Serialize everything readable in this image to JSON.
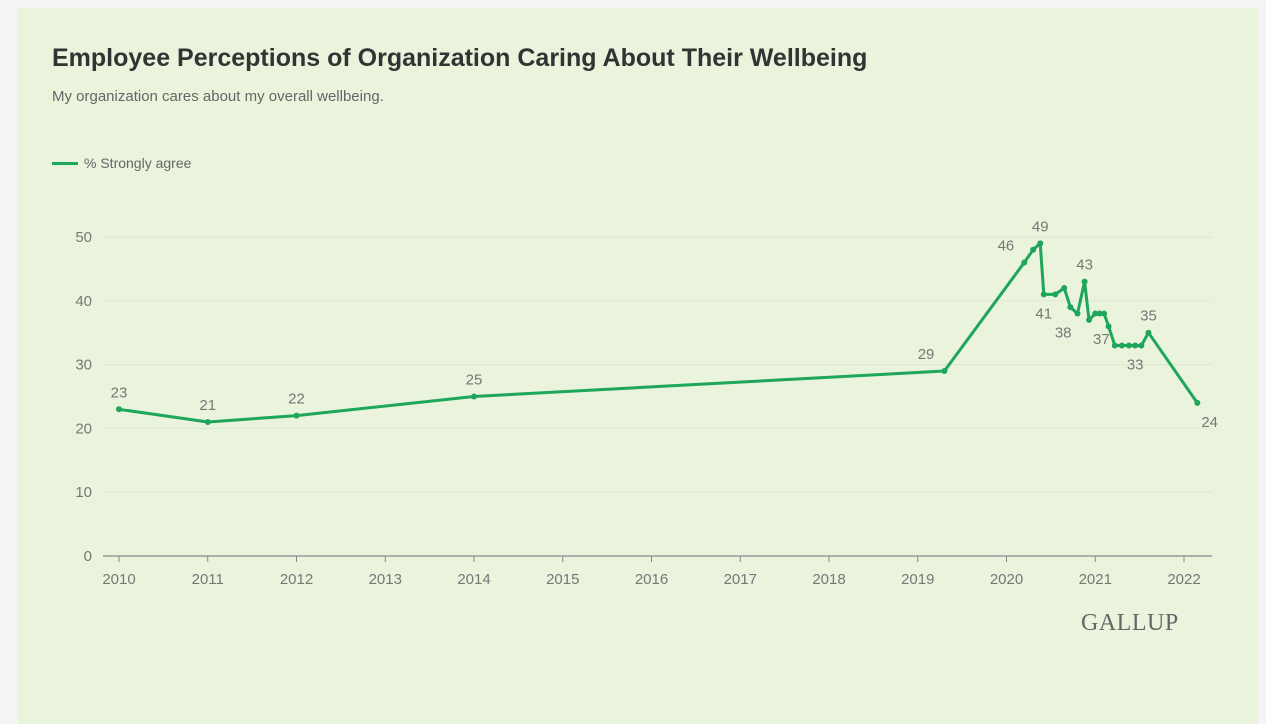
{
  "title": "Employee Perceptions of Organization Caring About Their Wellbeing",
  "subtitle": "My organization cares about my overall wellbeing.",
  "legend_label": "% Strongly agree",
  "logo": "GALLUP",
  "colors": {
    "line": "#1ea65a",
    "background": "#eaf3dc",
    "grid": "#dfe6d4",
    "axis": "#888888"
  },
  "chart_data": {
    "type": "line",
    "title": "Employee Perceptions of Organization Caring About Their Wellbeing",
    "subtitle": "My organization cares about my overall wellbeing.",
    "xlabel": "",
    "ylabel": "",
    "xlim": [
      2010,
      2022.2
    ],
    "ylim": [
      0,
      50
    ],
    "x_ticks": [
      "2010",
      "2011",
      "2012",
      "2013",
      "2014",
      "2015",
      "2016",
      "2017",
      "2018",
      "2019",
      "2020",
      "2021",
      "2022"
    ],
    "y_ticks": [
      "0",
      "10",
      "20",
      "30",
      "40",
      "50"
    ],
    "grid": true,
    "legend_position": "top-left",
    "series": [
      {
        "name": "% Strongly agree",
        "x": [
          2010.0,
          2011.0,
          2012.0,
          2014.0,
          2019.3,
          2020.2,
          2020.3,
          2020.38,
          2020.42,
          2020.55,
          2020.65,
          2020.72,
          2020.8,
          2020.88,
          2020.93,
          2021.0,
          2021.05,
          2021.1,
          2021.15,
          2021.22,
          2021.3,
          2021.38,
          2021.45,
          2021.52,
          2021.6,
          2022.15
        ],
        "y": [
          23,
          21,
          22,
          25,
          29,
          46,
          48,
          49,
          41,
          41,
          42,
          39,
          38,
          43,
          37,
          38,
          38,
          38,
          36,
          33,
          33,
          33,
          33,
          33,
          35,
          24
        ]
      }
    ],
    "data_labels": [
      {
        "x": 2010.0,
        "y": 23,
        "text": "23",
        "pos": "above"
      },
      {
        "x": 2011.0,
        "y": 21,
        "text": "21",
        "pos": "above"
      },
      {
        "x": 2012.0,
        "y": 22,
        "text": "22",
        "pos": "above"
      },
      {
        "x": 2014.0,
        "y": 25,
        "text": "25",
        "pos": "above"
      },
      {
        "x": 2019.3,
        "y": 29,
        "text": "29",
        "pos": "above-left"
      },
      {
        "x": 2020.2,
        "y": 46,
        "text": "46",
        "pos": "above-left"
      },
      {
        "x": 2020.38,
        "y": 49,
        "text": "49",
        "pos": "above"
      },
      {
        "x": 2020.42,
        "y": 41,
        "text": "41",
        "pos": "below"
      },
      {
        "x": 2020.8,
        "y": 38,
        "text": "38",
        "pos": "below-left"
      },
      {
        "x": 2020.88,
        "y": 43,
        "text": "43",
        "pos": "above"
      },
      {
        "x": 2020.93,
        "y": 37,
        "text": "37",
        "pos": "below-right"
      },
      {
        "x": 2021.45,
        "y": 33,
        "text": "33",
        "pos": "below"
      },
      {
        "x": 2021.6,
        "y": 35,
        "text": "35",
        "pos": "above"
      },
      {
        "x": 2022.15,
        "y": 24,
        "text": "24",
        "pos": "below-right"
      }
    ]
  }
}
